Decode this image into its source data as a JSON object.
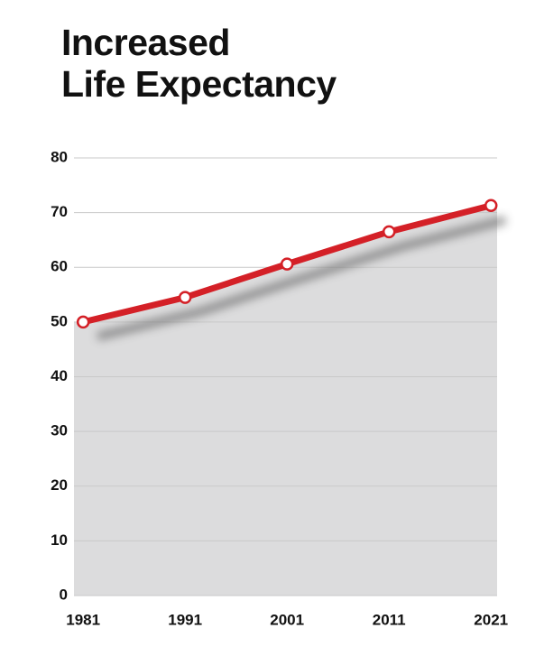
{
  "chart_data": {
    "type": "line",
    "title": "Increased\nLife Expectancy",
    "x": [
      1981,
      1991,
      2001,
      2011,
      2021
    ],
    "series": [
      {
        "name": "Life Expectancy",
        "color": "#d42027",
        "values": [
          50,
          54.5,
          60.6,
          66.5,
          71.3
        ]
      }
    ],
    "xlim": [
      1980.1,
      2021.6
    ],
    "xticks": [
      1981,
      1991,
      2001,
      2011,
      2021
    ],
    "ylim": [
      0,
      80
    ],
    "yticks": [
      0,
      10,
      20,
      30,
      40,
      50,
      60,
      70,
      80
    ],
    "grid": true,
    "area_color": "#dcdcdd"
  }
}
